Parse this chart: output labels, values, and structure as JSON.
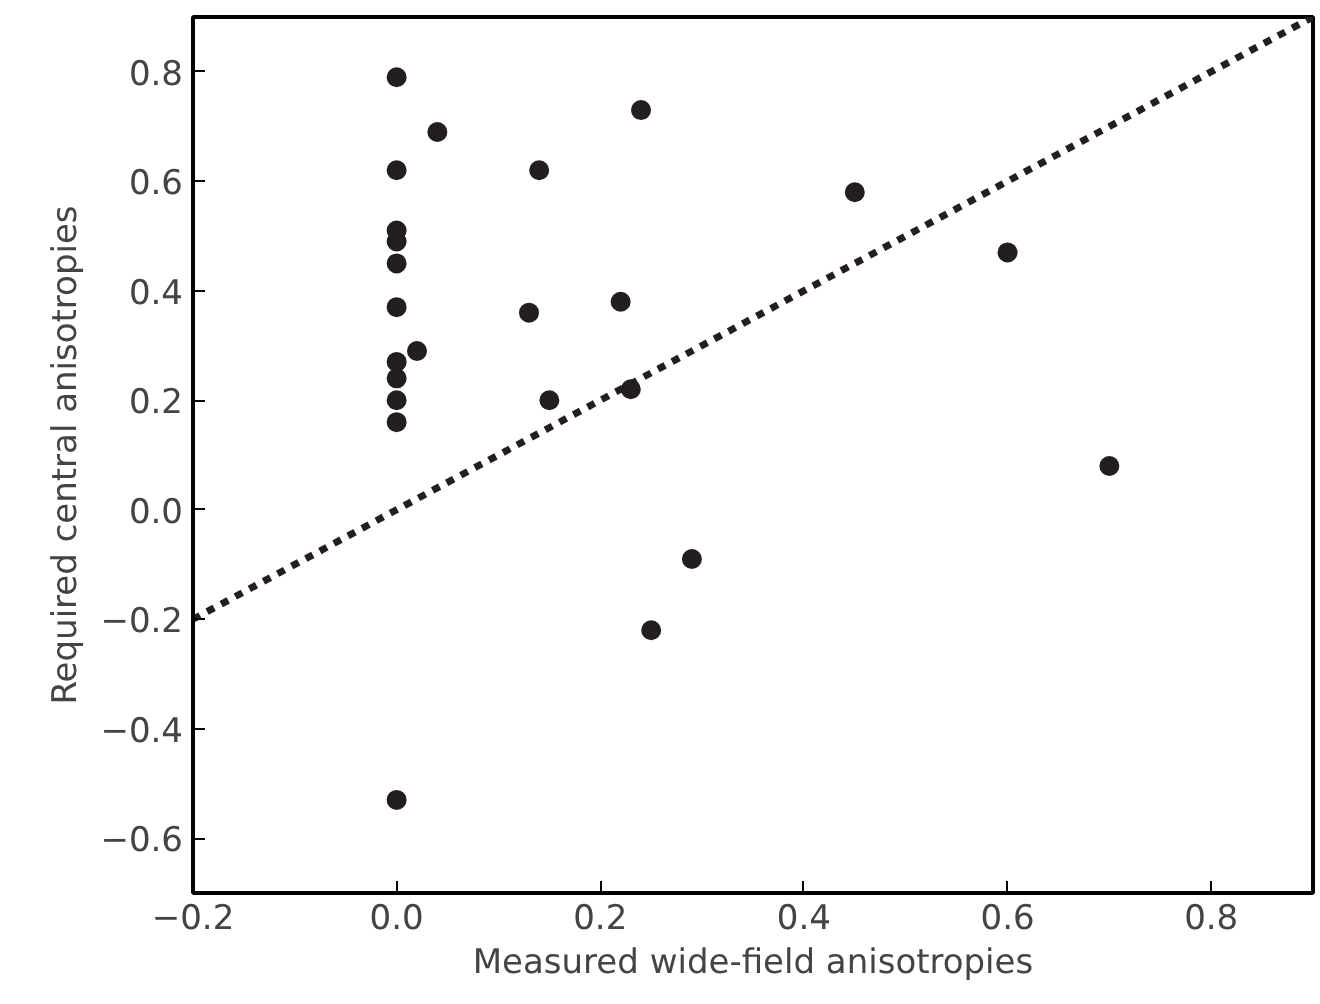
{
  "chart_data": {
    "type": "scatter",
    "xlabel": "Measured wide-field anisotropies",
    "ylabel": "Required central anisotropies",
    "xlim": [
      -0.2,
      0.9
    ],
    "ylim": [
      -0.7,
      0.9
    ],
    "xticks": [
      -0.2,
      {
        "value": 0,
        "label": "0.0"
      },
      0.2,
      0.4,
      0.6,
      0.8
    ],
    "yticks": [
      -0.6,
      -0.4,
      -0.2,
      {
        "value": 0,
        "label": "0.0"
      },
      0.2,
      0.4,
      0.6,
      0.8
    ],
    "grid": false,
    "series": [
      {
        "marker": "circle",
        "color": "#231f20",
        "x": [
          0,
          0.04,
          0.24,
          0,
          0.14,
          0.45,
          0,
          0,
          0,
          0.6,
          0,
          0.13,
          0.22,
          0.02,
          0,
          0,
          0,
          0.15,
          0.23,
          0,
          0.7,
          0.29,
          0.25,
          0
        ],
        "values": [
          0.79,
          0.69,
          0.73,
          0.62,
          0.62,
          0.58,
          0.51,
          0.49,
          0.45,
          0.47,
          0.37,
          0.36,
          0.38,
          0.29,
          0.27,
          0.24,
          0.2,
          0.2,
          0.22,
          0.16,
          0.08,
          -0.09,
          -0.22,
          -0.53
        ]
      },
      {
        "type": "line",
        "line_style": "dotted",
        "color": "#231f20",
        "x": [
          -0.2,
          0.9
        ],
        "values": [
          -0.2,
          0.9
        ]
      }
    ]
  }
}
